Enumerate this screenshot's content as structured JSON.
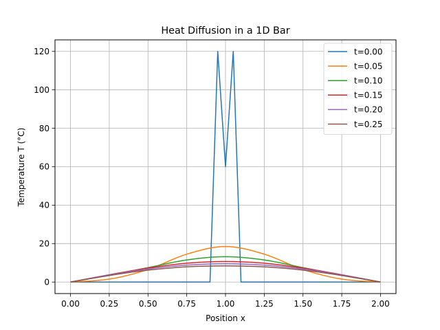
{
  "chart_data": {
    "type": "line",
    "title": "Heat Diffusion in a 1D Bar",
    "xlabel": "Position x",
    "ylabel": "Temperature T (°C)",
    "xlim": [
      -0.1,
      2.1
    ],
    "ylim": [
      -6,
      126
    ],
    "xticks": [
      0.0,
      0.25,
      0.5,
      0.75,
      1.0,
      1.25,
      1.5,
      1.75,
      2.0
    ],
    "xtick_labels": [
      "0.00",
      "0.25",
      "0.50",
      "0.75",
      "1.00",
      "1.25",
      "1.50",
      "1.75",
      "2.00"
    ],
    "yticks": [
      0,
      20,
      40,
      60,
      80,
      100,
      120
    ],
    "ytick_labels": [
      "0",
      "20",
      "40",
      "60",
      "80",
      "100",
      "120"
    ],
    "grid": true,
    "legend_position": "top-right",
    "series": [
      {
        "name": "t=0.00",
        "color": "#1f77b4",
        "x": [
          0.0,
          0.9,
          0.95,
          1.0,
          1.05,
          1.1,
          2.0
        ],
        "y": [
          0,
          0,
          120,
          60,
          120,
          0,
          0
        ]
      },
      {
        "name": "t=0.05",
        "color": "#ff7f0e",
        "x": [
          0.0,
          0.25,
          0.5,
          0.75,
          1.0,
          1.25,
          1.5,
          1.75,
          2.0
        ],
        "y": [
          0,
          1.5,
          6.5,
          14.5,
          18.5,
          14.5,
          6.5,
          1.5,
          0
        ]
      },
      {
        "name": "t=0.10",
        "color": "#2ca02c",
        "x": [
          0.0,
          0.25,
          0.5,
          0.75,
          1.0,
          1.25,
          1.5,
          1.75,
          2.0
        ],
        "y": [
          0,
          3.5,
          7.5,
          11.5,
          13.2,
          11.5,
          7.5,
          3.5,
          0
        ]
      },
      {
        "name": "t=0.15",
        "color": "#d62728",
        "x": [
          0.0,
          0.25,
          0.5,
          0.75,
          1.0,
          1.25,
          1.5,
          1.75,
          2.0
        ],
        "y": [
          0,
          3.8,
          7.3,
          9.8,
          10.7,
          9.8,
          7.3,
          3.8,
          0
        ]
      },
      {
        "name": "t=0.20",
        "color": "#9467bd",
        "x": [
          0.0,
          0.25,
          0.5,
          0.75,
          1.0,
          1.25,
          1.5,
          1.75,
          2.0
        ],
        "y": [
          0,
          3.7,
          6.8,
          8.8,
          9.5,
          8.8,
          6.8,
          3.7,
          0
        ]
      },
      {
        "name": "t=0.25",
        "color": "#8c564b",
        "x": [
          0.0,
          0.25,
          0.5,
          0.75,
          1.0,
          1.25,
          1.5,
          1.75,
          2.0
        ],
        "y": [
          0,
          3.4,
          6.2,
          7.9,
          8.4,
          7.9,
          6.2,
          3.4,
          0
        ]
      }
    ]
  }
}
